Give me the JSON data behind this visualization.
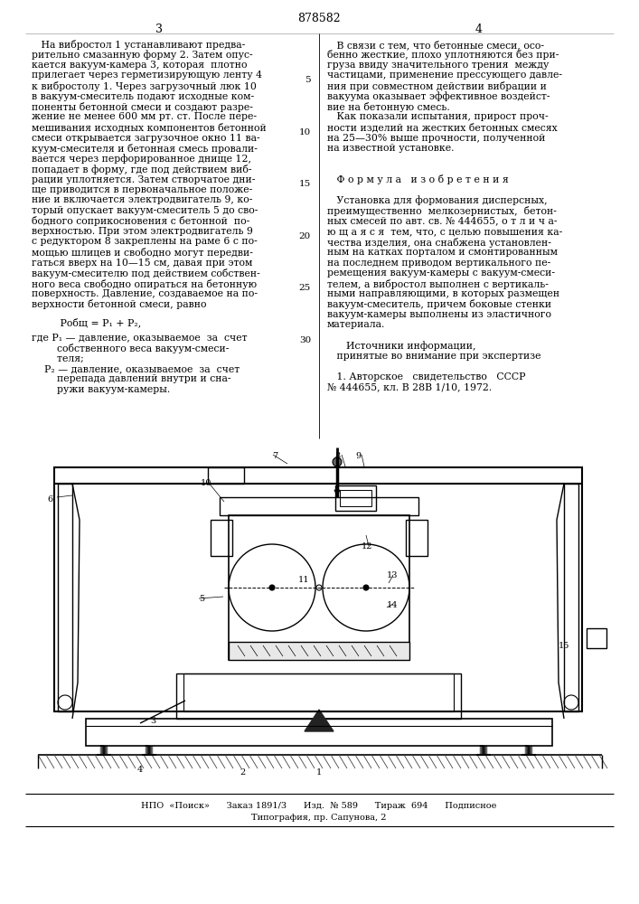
{
  "patent_number": "878582",
  "page_left": "3",
  "page_right": "4",
  "bg_color": "#ffffff",
  "left_col_lines": [
    "   На вибростол 1 устанавливают предва-",
    "рительно смазанную форму 2. Затем опус-",
    "кается вакуум-камера 3, которая  плотно",
    "прилегает через герметизирующую ленту 4",
    "к вибростолу 1. Через загрузочный люк 10",
    "в вакуум-смеситель подают исходные ком-",
    "поненты бетонной смеси и создают разре-",
    "жение не менее 600 мм рт. ст. После пере-",
    "мешивания исходных компонентов бетонной",
    "смеси открывается загрузочное окно 11 ва-",
    "куум-смесителя и бетонная смесь провали-",
    "вается через перфорированное днище 12,",
    "попадает в форму, где под действием виб-",
    "рации уплотняется. Затем створчатое дни-",
    "ще приводится в первоначальное положе-",
    "ние и включается электродвигатель 9, ко-",
    "торый опускает вакуум-смеситель 5 до сво-",
    "бодного соприкосновения с бетонной  по-",
    "верхностью. При этом электродвигатель 9",
    "с редуктором 8 закреплены на раме 6 с по-",
    "мощью шлицев и свободно могут передви-",
    "гаться вверх на 10—15 см, давая при этом",
    "вакуум-смесителю под действием собствен-",
    "ного веса свободно опираться на бетонную",
    "поверхность. Давление, создаваемое на по-",
    "верхности бетонной смеси, равно"
  ],
  "formula_line": "         Pобщ = P₁ + P₂,",
  "where_lines": [
    "где P₁ — давление, оказываемое  за  счет",
    "        собственного веса вакуум-смеси-",
    "        теля;",
    "    P₂ — давление, оказываемое  за  счет",
    "        перепада давлений внутри и сна-",
    "        ружи вакуум-камеры."
  ],
  "line_numbers": [
    5,
    10,
    15,
    20,
    25,
    30
  ],
  "right_col_lines": [
    "   В связи с тем, что бетонные смеси, осо-",
    "бенно жесткие, плохо уплотняются без при-",
    "груза ввиду значительного трения  между",
    "частицами, применение прессующего давле-",
    "ния при совместном действии вибрации и",
    "вакуума оказывает эффективное воздейст-",
    "вие на бетонную смесь.",
    "   Как показали испытания, прирост проч-",
    "ности изделий на жестких бетонных смесях",
    "на 25—30% выше прочности, полученной",
    "на известной установке.",
    "",
    "",
    "   Ф о р м у л а   и з о б р е т е н и я",
    "",
    "   Установка для формования дисперсных,",
    "преимущественно  мелкозернистых,  бетон-",
    "ных смесей по авт. св. № 444655, о т л и ч а-",
    "ю щ а я с я  тем, что, с целью повышения ка-",
    "чества изделия, она снабжена установлен-",
    "ным на катках порталом и смонтированным",
    "на последнем приводом вертикального пе-",
    "ремещения вакуум-камеры с вакуум-смеси-",
    "телем, а вибростол выполнен с вертикаль-",
    "ными направляющими, в которых размещен",
    "вакуум-смеситель, причем боковые стенки",
    "вакуум-камеры выполнены из эластичного",
    "материала.",
    "",
    "      Источники информации,",
    "   принятые во внимание при экспертизе",
    "",
    "   1. Авторское   свидетельство   СССР",
    "№ 444655, кл. В 28В 1/10, 1972."
  ],
  "footer_line1": "НПО  «Поиск»      Заказ 1891/3      Изд.  № 589      Тираж  694      Подписное",
  "footer_line2": "Типография, пр. Сапунова, 2"
}
